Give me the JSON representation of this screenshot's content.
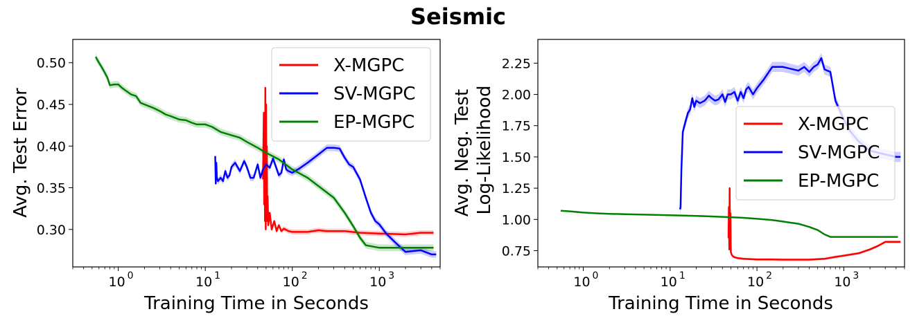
{
  "figure_title": "Seismic",
  "chart_data": [
    {
      "type": "line",
      "xscale": "log",
      "xlabel": "Training Time in Seconds",
      "ylabel": "Avg. Test Error",
      "xlim": [
        0.3,
        5000
      ],
      "ylim": [
        0.255,
        0.528
      ],
      "x_ticks": [
        1,
        10,
        100,
        1000
      ],
      "x_tick_labels": [
        "10",
        "10",
        "10",
        "10"
      ],
      "x_tick_exponents": [
        "0",
        "1",
        "2",
        "3"
      ],
      "y_ticks": [
        0.3,
        0.35,
        0.4,
        0.45,
        0.5
      ],
      "y_tick_labels": [
        "0.30",
        "0.35",
        "0.40",
        "0.45",
        "0.50"
      ],
      "legend_position": "upper right",
      "series": [
        {
          "name": "X-MGPC",
          "color": "#ff0000",
          "x": [
            46,
            47,
            47.5,
            48,
            48.5,
            49,
            49.5,
            50,
            50.5,
            51,
            51.5,
            52,
            53,
            55,
            58,
            62,
            66,
            70,
            75,
            80,
            90,
            100,
            150,
            200,
            250,
            300,
            400,
            600,
            1000,
            2000,
            3000,
            4200
          ],
          "y": [
            0.36,
            0.44,
            0.33,
            0.42,
            0.31,
            0.47,
            0.3,
            0.45,
            0.32,
            0.4,
            0.31,
            0.34,
            0.305,
            0.32,
            0.3,
            0.31,
            0.298,
            0.305,
            0.298,
            0.301,
            0.298,
            0.297,
            0.297,
            0.299,
            0.298,
            0.298,
            0.298,
            0.296,
            0.295,
            0.294,
            0.296,
            0.296
          ],
          "band": 0.003
        },
        {
          "name": "SV-MGPC",
          "color": "#0000ff",
          "x": [
            13,
            13.2,
            13.4,
            13.6,
            14,
            15,
            16,
            17,
            18,
            19,
            20,
            22,
            25,
            28,
            30,
            33,
            36,
            40,
            43,
            46,
            50,
            55,
            60,
            65,
            70,
            75,
            80,
            85,
            90,
            100,
            120,
            150,
            200,
            250,
            300,
            350,
            400,
            450,
            500,
            600,
            700,
            800,
            900,
            1000,
            1200,
            1500,
            2000,
            3000,
            4000,
            4500
          ],
          "y": [
            0.388,
            0.355,
            0.38,
            0.362,
            0.358,
            0.362,
            0.358,
            0.37,
            0.362,
            0.365,
            0.375,
            0.38,
            0.37,
            0.382,
            0.375,
            0.362,
            0.362,
            0.378,
            0.362,
            0.372,
            0.378,
            0.374,
            0.385,
            0.375,
            0.365,
            0.368,
            0.384,
            0.372,
            0.37,
            0.368,
            0.373,
            0.38,
            0.39,
            0.398,
            0.398,
            0.397,
            0.386,
            0.378,
            0.375,
            0.36,
            0.338,
            0.32,
            0.31,
            0.306,
            0.295,
            0.285,
            0.273,
            0.275,
            0.27,
            0.27
          ],
          "band": 0.004
        },
        {
          "name": "EP-MGPC",
          "color": "#008000",
          "x": [
            0.55,
            0.6,
            0.65,
            0.7,
            0.75,
            0.8,
            0.9,
            1.0,
            1.1,
            1.2,
            1.4,
            1.6,
            1.8,
            2,
            2.5,
            3,
            3.5,
            4,
            5,
            6,
            7,
            8,
            10,
            12,
            15,
            20,
            25,
            30,
            40,
            50,
            70,
            100,
            150,
            200,
            300,
            400,
            500,
            600,
            700,
            1000,
            2000,
            3000,
            4200
          ],
          "y": [
            0.507,
            0.5,
            0.494,
            0.488,
            0.482,
            0.473,
            0.474,
            0.474,
            0.47,
            0.467,
            0.462,
            0.46,
            0.452,
            0.45,
            0.446,
            0.442,
            0.438,
            0.436,
            0.432,
            0.431,
            0.428,
            0.426,
            0.426,
            0.423,
            0.417,
            0.413,
            0.41,
            0.405,
            0.398,
            0.392,
            0.384,
            0.372,
            0.362,
            0.352,
            0.338,
            0.32,
            0.304,
            0.29,
            0.281,
            0.278,
            0.278,
            0.278,
            0.278
          ],
          "band": 0.004
        }
      ]
    },
    {
      "type": "line",
      "xscale": "log",
      "xlabel": "Training Time in Seconds",
      "ylabel": "Avg. Neg. Test",
      "ylabel_line2": "Log-Likelihood",
      "xlim": [
        0.3,
        5000
      ],
      "ylim": [
        0.62,
        2.44
      ],
      "x_ticks": [
        1,
        10,
        100,
        1000
      ],
      "x_tick_labels": [
        "10",
        "10",
        "10",
        "10"
      ],
      "x_tick_exponents": [
        "0",
        "1",
        "2",
        "3"
      ],
      "y_ticks": [
        0.75,
        1.0,
        1.25,
        1.5,
        1.75,
        2.0,
        2.25
      ],
      "y_tick_labels": [
        "0.75",
        "1.00",
        "1.25",
        "1.50",
        "1.75",
        "2.00",
        "2.25"
      ],
      "legend_position": "center right",
      "series": [
        {
          "name": "X-MGPC",
          "color": "#ff0000",
          "x": [
            47,
            47.5,
            48,
            48.5,
            49,
            49.5,
            50,
            51,
            52,
            54,
            57,
            60,
            65,
            70,
            80,
            100,
            150,
            200,
            300,
            400,
            600,
            800,
            1000,
            1500,
            2000,
            2500,
            3000,
            4000,
            4500
          ],
          "y": [
            0.85,
            1.1,
            0.76,
            1.25,
            0.8,
            1.05,
            0.74,
            0.72,
            0.71,
            0.7,
            0.695,
            0.69,
            0.688,
            0.685,
            0.683,
            0.68,
            0.68,
            0.678,
            0.678,
            0.678,
            0.685,
            0.7,
            0.71,
            0.73,
            0.76,
            0.79,
            0.82,
            0.82,
            0.82
          ],
          "band": 0.01
        },
        {
          "name": "SV-MGPC",
          "color": "#0000ff",
          "x": [
            13,
            13.2,
            13.5,
            14,
            15,
            16,
            17,
            18,
            19,
            20,
            22,
            25,
            28,
            30,
            33,
            36,
            40,
            43,
            46,
            50,
            55,
            60,
            65,
            70,
            75,
            80,
            90,
            100,
            120,
            150,
            200,
            300,
            350,
            400,
            450,
            500,
            550,
            600,
            700,
            800,
            1000,
            1200,
            1500,
            2000,
            3000,
            4000,
            4500
          ],
          "y": [
            1.08,
            1.1,
            1.4,
            1.7,
            1.78,
            1.85,
            1.88,
            1.97,
            1.9,
            1.95,
            1.93,
            1.95,
            1.99,
            1.97,
            1.95,
            1.96,
            2.0,
            1.94,
            2.0,
            2.0,
            2.02,
            1.95,
            2.02,
            1.97,
            2.04,
            2.06,
            2.0,
            2.05,
            2.12,
            2.22,
            2.22,
            2.19,
            2.22,
            2.18,
            2.22,
            2.24,
            2.29,
            2.2,
            2.18,
            1.95,
            1.8,
            1.7,
            1.62,
            1.55,
            1.52,
            1.5,
            1.5
          ],
          "band": 0.04
        },
        {
          "name": "EP-MGPC",
          "color": "#008000",
          "x": [
            0.55,
            0.7,
            1,
            1.5,
            2,
            3,
            5,
            10,
            20,
            30,
            50,
            70,
            100,
            150,
            200,
            300,
            400,
            500,
            600,
            700,
            1000,
            2000,
            3000,
            4200
          ],
          "y": [
            1.07,
            1.065,
            1.055,
            1.048,
            1.045,
            1.042,
            1.038,
            1.033,
            1.028,
            1.024,
            1.018,
            1.013,
            1.005,
            0.995,
            0.983,
            0.965,
            0.94,
            0.915,
            0.88,
            0.86,
            0.86,
            0.86,
            0.86,
            0.86
          ],
          "band": 0.004
        }
      ]
    }
  ]
}
